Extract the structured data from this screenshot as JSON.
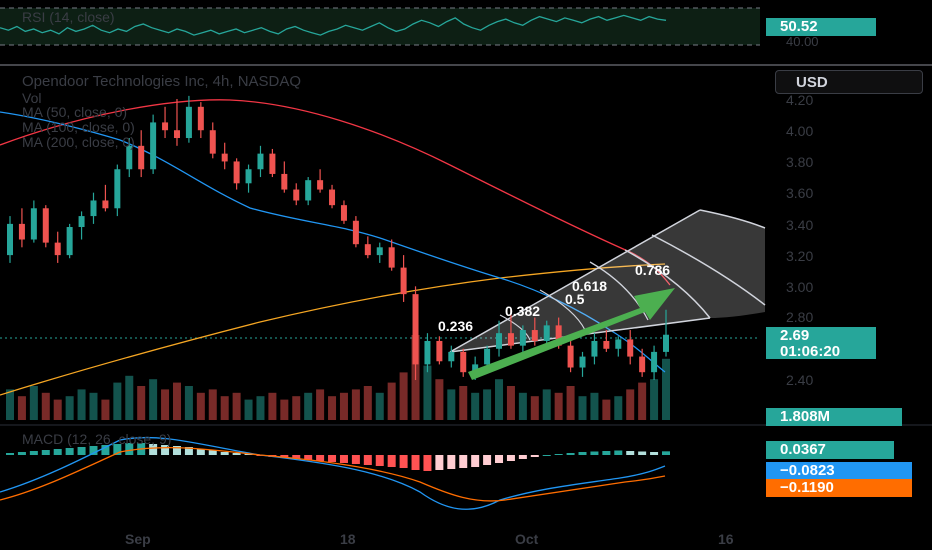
{
  "rsi": {
    "legend": "RSI (14, close)",
    "value": "50.52",
    "lower_value": "40.00",
    "line": [
      44,
      42,
      45,
      41,
      43,
      40,
      42,
      39,
      44,
      41,
      43,
      46,
      42,
      40,
      43,
      41,
      45,
      47,
      44,
      42,
      40,
      43,
      41,
      38,
      40,
      42,
      39,
      41,
      43,
      40,
      42,
      44,
      41,
      39,
      43,
      45,
      42,
      40,
      38,
      41,
      43,
      46,
      44,
      42,
      45,
      48,
      44,
      41,
      43,
      47,
      50,
      48,
      45,
      49,
      52,
      47,
      44,
      42,
      46,
      49,
      51,
      48,
      46,
      50,
      53,
      51,
      49,
      52,
      50,
      48,
      51,
      53,
      50,
      52,
      54,
      52,
      50,
      53,
      51,
      50
    ]
  },
  "header": {
    "title": "Opendoor Technologies Inc, 4h, NASDAQ",
    "vol": "Vol",
    "ma1": "MA (50, close, 0)",
    "ma2": "MA (100, close, 0)",
    "ma3": "MA (200, close, 0)",
    "currency": "USD"
  },
  "price_axis": {
    "ticks": [
      "4.20",
      "4.00",
      "3.80",
      "3.60",
      "3.40",
      "3.20",
      "3.00",
      "2.80",
      "2.40"
    ],
    "last_price": "2.69",
    "countdown": "01:06:20",
    "volume_label": "1.808M"
  },
  "fib": {
    "levels": [
      "0.236",
      "0.382",
      "0.5",
      "0.618",
      "0.786"
    ]
  },
  "macd": {
    "legend": "MACD (12, 26, close, 9)",
    "hist_value": "0.0367",
    "macd_value": "−0.0823",
    "signal_value": "−0.1190"
  },
  "time_axis": {
    "labels": [
      "Sep",
      "18",
      "Oct",
      "16"
    ]
  },
  "colors": {
    "up": "#26a69a",
    "down": "#ef5350",
    "ma50": "#2196f3",
    "ma100": "#f23645",
    "ma200": "#f5a623",
    "macd_line": "#2196f3",
    "signal_line": "#ff6d00",
    "arrow": "#4caf50"
  },
  "chart_data": {
    "type": "candlestick",
    "timeframe": "4h",
    "ylim": [
      2.2,
      4.3
    ],
    "candles": [
      [
        3.2,
        3.45,
        3.15,
        3.4
      ],
      [
        3.4,
        3.5,
        3.25,
        3.3
      ],
      [
        3.3,
        3.55,
        3.28,
        3.5
      ],
      [
        3.5,
        3.52,
        3.25,
        3.28
      ],
      [
        3.28,
        3.35,
        3.15,
        3.2
      ],
      [
        3.2,
        3.4,
        3.18,
        3.38
      ],
      [
        3.38,
        3.48,
        3.3,
        3.45
      ],
      [
        3.45,
        3.6,
        3.4,
        3.55
      ],
      [
        3.55,
        3.65,
        3.48,
        3.5
      ],
      [
        3.5,
        3.78,
        3.45,
        3.75
      ],
      [
        3.75,
        3.95,
        3.7,
        3.9
      ],
      [
        3.9,
        4.0,
        3.7,
        3.75
      ],
      [
        3.75,
        4.1,
        3.72,
        4.05
      ],
      [
        4.05,
        4.15,
        3.95,
        4.0
      ],
      [
        4.0,
        4.2,
        3.9,
        3.95
      ],
      [
        3.95,
        4.22,
        3.92,
        4.15
      ],
      [
        4.15,
        4.18,
        3.95,
        4.0
      ],
      [
        4.0,
        4.05,
        3.82,
        3.85
      ],
      [
        3.85,
        3.92,
        3.75,
        3.8
      ],
      [
        3.8,
        3.82,
        3.62,
        3.66
      ],
      [
        3.66,
        3.78,
        3.6,
        3.75
      ],
      [
        3.75,
        3.9,
        3.7,
        3.85
      ],
      [
        3.85,
        3.88,
        3.7,
        3.72
      ],
      [
        3.72,
        3.8,
        3.6,
        3.62
      ],
      [
        3.62,
        3.66,
        3.52,
        3.55
      ],
      [
        3.55,
        3.7,
        3.52,
        3.68
      ],
      [
        3.68,
        3.75,
        3.6,
        3.62
      ],
      [
        3.62,
        3.65,
        3.5,
        3.52
      ],
      [
        3.52,
        3.55,
        3.4,
        3.42
      ],
      [
        3.42,
        3.45,
        3.25,
        3.27
      ],
      [
        3.27,
        3.32,
        3.18,
        3.2
      ],
      [
        3.2,
        3.28,
        3.15,
        3.25
      ],
      [
        3.25,
        3.3,
        3.1,
        3.12
      ],
      [
        3.12,
        3.2,
        2.9,
        2.95
      ],
      [
        2.95,
        3.0,
        2.4,
        2.5
      ],
      [
        2.5,
        2.7,
        2.45,
        2.65
      ],
      [
        2.65,
        2.68,
        2.5,
        2.52
      ],
      [
        2.52,
        2.62,
        2.48,
        2.58
      ],
      [
        2.58,
        2.6,
        2.42,
        2.45
      ],
      [
        2.45,
        2.55,
        2.4,
        2.5
      ],
      [
        2.5,
        2.62,
        2.46,
        2.6
      ],
      [
        2.6,
        2.78,
        2.55,
        2.7
      ],
      [
        2.7,
        2.85,
        2.6,
        2.62
      ],
      [
        2.62,
        2.75,
        2.58,
        2.72
      ],
      [
        2.72,
        2.8,
        2.62,
        2.65
      ],
      [
        2.65,
        2.78,
        2.6,
        2.75
      ],
      [
        2.75,
        2.8,
        2.6,
        2.62
      ],
      [
        2.62,
        2.66,
        2.45,
        2.48
      ],
      [
        2.48,
        2.58,
        2.42,
        2.55
      ],
      [
        2.55,
        2.7,
        2.5,
        2.65
      ],
      [
        2.65,
        2.72,
        2.58,
        2.6
      ],
      [
        2.6,
        2.68,
        2.55,
        2.66
      ],
      [
        2.66,
        2.72,
        2.5,
        2.55
      ],
      [
        2.55,
        2.6,
        2.42,
        2.45
      ],
      [
        2.45,
        2.62,
        2.4,
        2.58
      ],
      [
        2.58,
        2.85,
        2.55,
        2.69
      ]
    ],
    "volume": [
      0.9,
      0.7,
      1.0,
      0.8,
      0.6,
      0.7,
      0.9,
      0.8,
      0.6,
      1.1,
      1.3,
      1.0,
      1.2,
      0.9,
      1.1,
      1.0,
      0.8,
      0.9,
      0.7,
      0.8,
      0.6,
      0.7,
      0.8,
      0.6,
      0.7,
      0.8,
      0.9,
      0.7,
      0.8,
      0.9,
      1.0,
      0.8,
      1.1,
      1.4,
      2.5,
      1.6,
      1.2,
      0.9,
      1.0,
      0.8,
      0.9,
      1.2,
      1.0,
      0.8,
      0.7,
      0.9,
      0.8,
      1.0,
      0.7,
      0.8,
      0.6,
      0.7,
      0.9,
      1.1,
      1.2,
      1.8
    ],
    "macd_hist": [
      0.02,
      0.03,
      0.04,
      0.05,
      0.06,
      0.07,
      0.08,
      0.09,
      0.1,
      0.11,
      0.12,
      0.12,
      0.11,
      0.1,
      0.09,
      0.08,
      0.06,
      0.05,
      0.03,
      0.02,
      0.01,
      -0.01,
      -0.02,
      -0.03,
      -0.04,
      -0.05,
      -0.06,
      -0.07,
      -0.08,
      -0.09,
      -0.1,
      -0.11,
      -0.12,
      -0.13,
      -0.15,
      -0.16,
      -0.15,
      -0.14,
      -0.13,
      -0.12,
      -0.1,
      -0.08,
      -0.06,
      -0.04,
      -0.02,
      0.0,
      0.01,
      0.02,
      0.03,
      0.035,
      0.04,
      0.045,
      0.04,
      0.035,
      0.03,
      0.0367
    ]
  }
}
